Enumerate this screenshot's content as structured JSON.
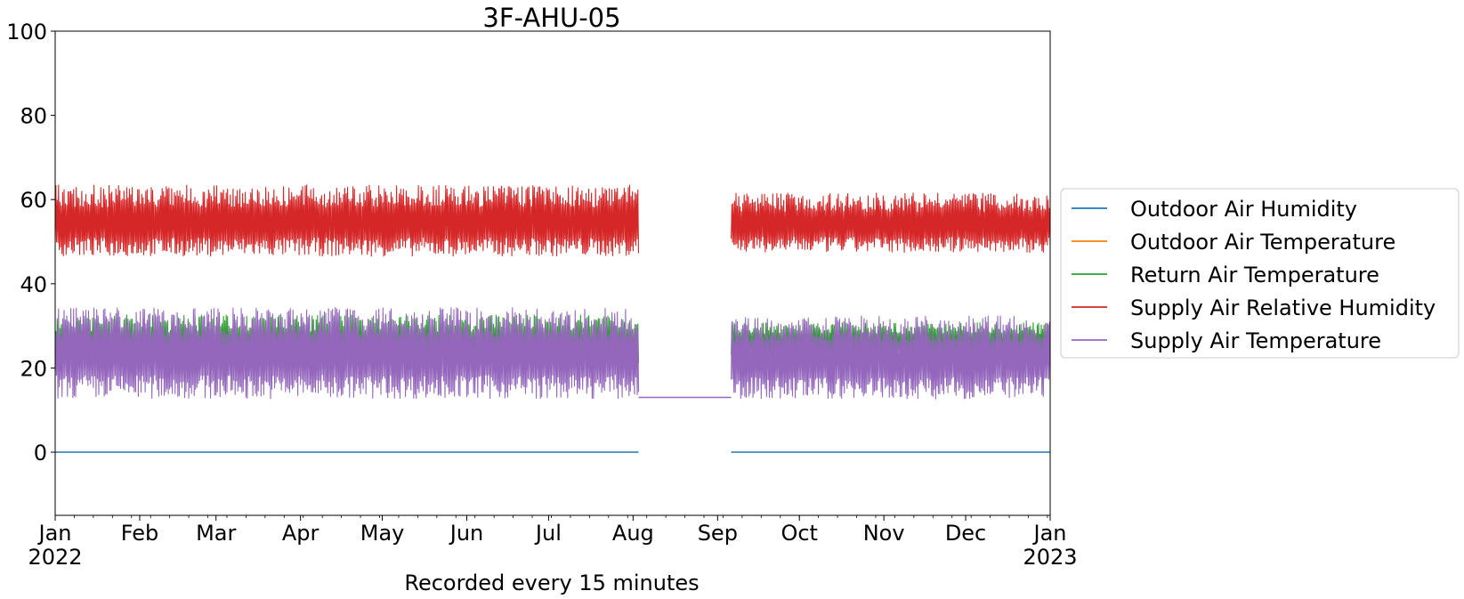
{
  "chart_data": {
    "type": "line",
    "title": "3F-AHU-05",
    "xlabel": "Recorded every 15 minutes",
    "ylabel": "",
    "xlim": [
      "2022-01-01",
      "2023-01-01"
    ],
    "ylim": [
      -15,
      100
    ],
    "x_ticks": [
      {
        "date": "2022-01-01",
        "label": "Jan",
        "sublabel": "2022"
      },
      {
        "date": "2022-02-01",
        "label": "Feb",
        "sublabel": ""
      },
      {
        "date": "2022-03-01",
        "label": "Mar",
        "sublabel": ""
      },
      {
        "date": "2022-04-01",
        "label": "Apr",
        "sublabel": ""
      },
      {
        "date": "2022-05-01",
        "label": "May",
        "sublabel": ""
      },
      {
        "date": "2022-06-01",
        "label": "Jun",
        "sublabel": ""
      },
      {
        "date": "2022-07-01",
        "label": "Jul",
        "sublabel": ""
      },
      {
        "date": "2022-08-01",
        "label": "Aug",
        "sublabel": ""
      },
      {
        "date": "2022-09-01",
        "label": "Sep",
        "sublabel": ""
      },
      {
        "date": "2022-10-01",
        "label": "Oct",
        "sublabel": ""
      },
      {
        "date": "2022-11-01",
        "label": "Nov",
        "sublabel": ""
      },
      {
        "date": "2022-12-01",
        "label": "Dec",
        "sublabel": ""
      },
      {
        "date": "2023-01-01",
        "label": "Jan",
        "sublabel": "2023"
      }
    ],
    "y_ticks": [
      0,
      20,
      40,
      60,
      80,
      100
    ],
    "grid": false,
    "legend_position": "right-outside",
    "series": [
      {
        "name": "Outdoor Air Humidity",
        "color": "#1f77b4",
        "segments": [
          {
            "start": "2022-01-01",
            "end": "2022-08-03",
            "baseline": 0,
            "min": 0,
            "max": 0
          },
          {
            "start": "2022-09-06",
            "end": "2023-01-01",
            "baseline": 0,
            "min": 0,
            "max": 0
          }
        ]
      },
      {
        "name": "Outdoor Air Temperature",
        "color": "#ff7f0e",
        "segments": []
      },
      {
        "name": "Return Air Temperature",
        "color": "#2ca02c",
        "segments": [
          {
            "start": "2022-01-01",
            "end": "2022-08-03",
            "min": 19,
            "max": 33
          },
          {
            "start": "2022-09-06",
            "end": "2023-01-01",
            "min": 22,
            "max": 31
          }
        ]
      },
      {
        "name": "Supply Air Relative Humidity",
        "color": "#d62728",
        "segments": [
          {
            "start": "2022-01-01",
            "end": "2022-08-03",
            "min": 46,
            "max": 64
          },
          {
            "start": "2022-09-06",
            "end": "2023-01-01",
            "min": 47,
            "max": 62
          }
        ]
      },
      {
        "name": "Supply Air Temperature",
        "color": "#9467bd",
        "segments": [
          {
            "start": "2022-01-01",
            "end": "2022-08-03",
            "min": 12,
            "max": 35
          },
          {
            "start": "2022-08-03",
            "end": "2022-09-06",
            "min": 13,
            "max": 13
          },
          {
            "start": "2022-09-06",
            "end": "2023-01-01",
            "min": 12,
            "max": 33
          }
        ]
      }
    ]
  }
}
